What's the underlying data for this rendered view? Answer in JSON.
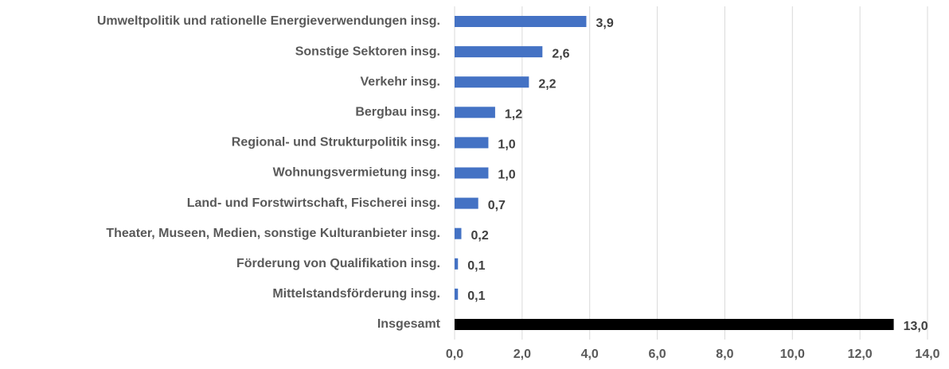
{
  "chart_data": {
    "type": "hbar",
    "categories": [
      "Umweltpolitik und rationelle Energieverwendungen insg.",
      "Sonstige Sektoren insg.",
      "Verkehr insg.",
      "Bergbau insg.",
      "Regional- und Strukturpolitik insg.",
      "Wohnungsvermietung insg.",
      "Land- und Forstwirtschaft, Fischerei insg.",
      "Theater, Museen, Medien, sonstige Kulturanbieter insg.",
      "Förderung von Qualifikation insg.",
      "Mittelstandsförderung insg.",
      "Insgesamt"
    ],
    "values": [
      3.9,
      2.6,
      2.2,
      1.2,
      1.0,
      1.0,
      0.7,
      0.2,
      0.1,
      0.1,
      13.0
    ],
    "value_labels": [
      "3,9",
      "2,6",
      "2,2",
      "1,2",
      "1,0",
      "1,0",
      "0,7",
      "0,2",
      "0,1",
      "0,1",
      "13,0"
    ],
    "colors": [
      "#4472c4",
      "#4472c4",
      "#4472c4",
      "#4472c4",
      "#4472c4",
      "#4472c4",
      "#4472c4",
      "#4472c4",
      "#4472c4",
      "#4472c4",
      "#000000"
    ],
    "xlim": [
      0,
      14
    ],
    "xticks": [
      {
        "value": 0,
        "label": "0,0"
      },
      {
        "value": 2,
        "label": "2,0"
      },
      {
        "value": 4,
        "label": "4,0"
      },
      {
        "value": 6,
        "label": "6,0"
      },
      {
        "value": 8,
        "label": "8,0"
      },
      {
        "value": 10,
        "label": "10,0"
      },
      {
        "value": 12,
        "label": "12,0"
      },
      {
        "value": 14,
        "label": "14,0"
      }
    ],
    "grid": true
  }
}
